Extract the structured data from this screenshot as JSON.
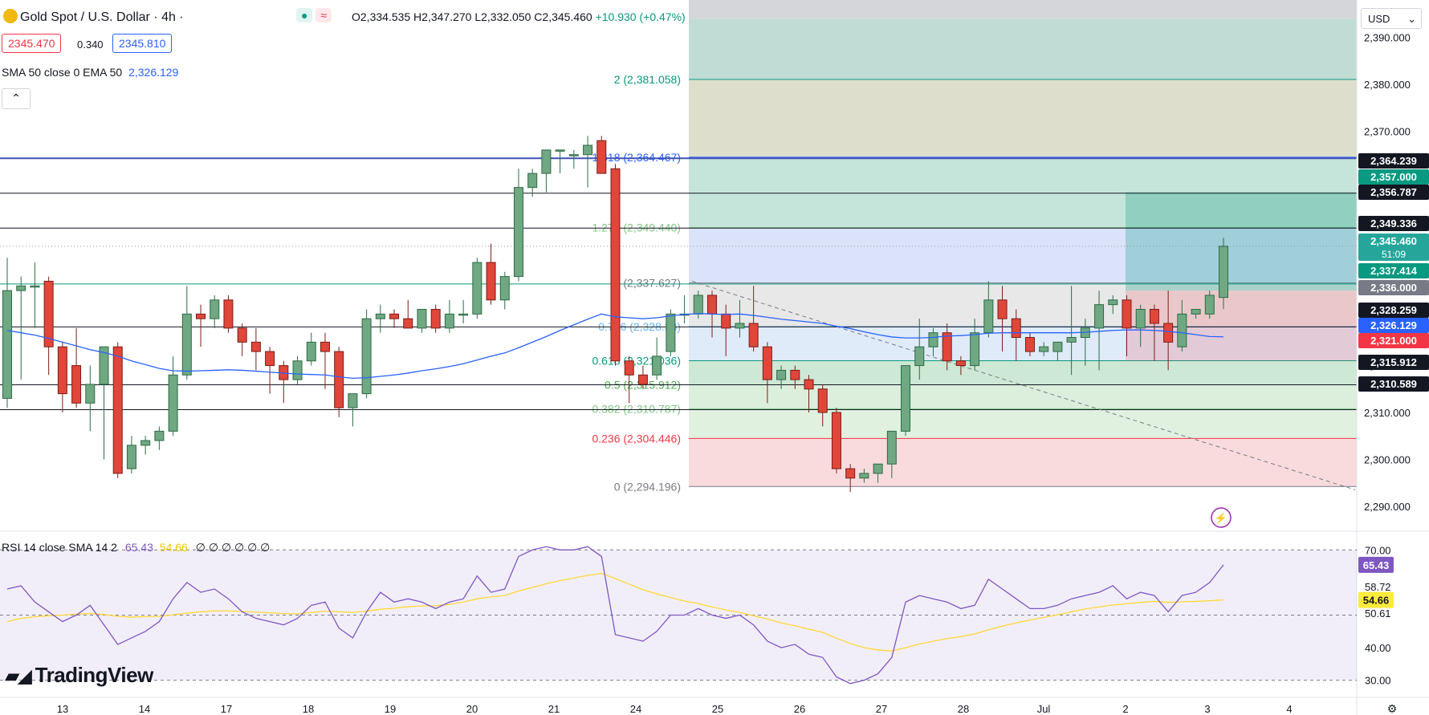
{
  "header": {
    "symbol": "Gold Spot / U.S. Dollar · 4h ·",
    "ohlc": "O2,334.535  H2,347.270  L2,332.050  C2,345.460",
    "change": "+10.930 (+0.47%)",
    "bid": "2345.470",
    "spread": "0.340",
    "ask": "2345.810",
    "indicator_label": "SMA 50 close 0 EMA 50",
    "indicator_value": "2,326.129",
    "rsi_label": "RSI 14 close SMA 14 2",
    "rsi_value": "65.43",
    "rsi_sma_value": "54.66",
    "rsi_zeros": "∅ ∅ ∅ ∅ ∅ ∅",
    "currency": "USD",
    "logo": "TradingView",
    "collapse_icon": "chevron-up-icon"
  },
  "chart_data": {
    "type": "candlestick",
    "title": "Gold Spot / U.S. Dollar · 4h",
    "y_range": [
      2285,
      2398
    ],
    "y_ticks": [
      "2,390.000",
      "2,380.000",
      "2,370.000",
      "2,360.000",
      "2,350.000",
      "2,340.000",
      "2,330.000",
      "2,320.000",
      "2,310.000",
      "2,300.000",
      "2,290.000"
    ],
    "x_labels": [
      "13",
      "14",
      "17",
      "18",
      "19",
      "20",
      "21",
      "24",
      "25",
      "26",
      "27",
      "28",
      "Jul",
      "2",
      "3",
      "4"
    ],
    "candles": [
      {
        "o": 2313,
        "h": 2343,
        "l": 2311,
        "c": 2336
      },
      {
        "o": 2336,
        "h": 2339,
        "l": 2317,
        "c": 2337
      },
      {
        "o": 2337,
        "h": 2342,
        "l": 2328,
        "c": 2337
      },
      {
        "o": 2338,
        "h": 2339,
        "l": 2318,
        "c": 2324
      },
      {
        "o": 2324,
        "h": 2325,
        "l": 2310,
        "c": 2314
      },
      {
        "o": 2320,
        "h": 2328,
        "l": 2311,
        "c": 2312
      },
      {
        "o": 2312,
        "h": 2320,
        "l": 2306,
        "c": 2316
      },
      {
        "o": 2316,
        "h": 2324,
        "l": 2300,
        "c": 2324
      },
      {
        "o": 2324,
        "h": 2325,
        "l": 2296,
        "c": 2297
      },
      {
        "o": 2298,
        "h": 2305,
        "l": 2297,
        "c": 2303
      },
      {
        "o": 2303,
        "h": 2305,
        "l": 2301,
        "c": 2304
      },
      {
        "o": 2304,
        "h": 2307,
        "l": 2302,
        "c": 2306
      },
      {
        "o": 2306,
        "h": 2322,
        "l": 2305,
        "c": 2318
      },
      {
        "o": 2318,
        "h": 2337,
        "l": 2317,
        "c": 2331
      },
      {
        "o": 2331,
        "h": 2333,
        "l": 2324,
        "c": 2330
      },
      {
        "o": 2330,
        "h": 2335,
        "l": 2328,
        "c": 2334
      },
      {
        "o": 2334,
        "h": 2335,
        "l": 2327,
        "c": 2328
      },
      {
        "o": 2328,
        "h": 2329,
        "l": 2322,
        "c": 2325
      },
      {
        "o": 2325,
        "h": 2328,
        "l": 2319,
        "c": 2323
      },
      {
        "o": 2323,
        "h": 2324,
        "l": 2314,
        "c": 2320
      },
      {
        "o": 2320,
        "h": 2321,
        "l": 2312,
        "c": 2317
      },
      {
        "o": 2317,
        "h": 2322,
        "l": 2316,
        "c": 2321
      },
      {
        "o": 2321,
        "h": 2327,
        "l": 2320,
        "c": 2325
      },
      {
        "o": 2325,
        "h": 2327,
        "l": 2315,
        "c": 2323
      },
      {
        "o": 2323,
        "h": 2324,
        "l": 2309,
        "c": 2311
      },
      {
        "o": 2311,
        "h": 2314,
        "l": 2307,
        "c": 2314
      },
      {
        "o": 2314,
        "h": 2332,
        "l": 2313,
        "c": 2330
      },
      {
        "o": 2330,
        "h": 2333,
        "l": 2327,
        "c": 2331
      },
      {
        "o": 2331,
        "h": 2332,
        "l": 2328,
        "c": 2330
      },
      {
        "o": 2330,
        "h": 2334,
        "l": 2328,
        "c": 2328
      },
      {
        "o": 2328,
        "h": 2332,
        "l": 2327,
        "c": 2332
      },
      {
        "o": 2332,
        "h": 2333,
        "l": 2327,
        "c": 2328
      },
      {
        "o": 2328,
        "h": 2334,
        "l": 2327,
        "c": 2331
      },
      {
        "o": 2331,
        "h": 2334,
        "l": 2329,
        "c": 2331
      },
      {
        "o": 2331,
        "h": 2343,
        "l": 2330,
        "c": 2342
      },
      {
        "o": 2342,
        "h": 2346,
        "l": 2333,
        "c": 2334
      },
      {
        "o": 2334,
        "h": 2340,
        "l": 2332,
        "c": 2339
      },
      {
        "o": 2339,
        "h": 2362,
        "l": 2338,
        "c": 2358
      },
      {
        "o": 2358,
        "h": 2362,
        "l": 2356,
        "c": 2361
      },
      {
        "o": 2361,
        "h": 2366,
        "l": 2357,
        "c": 2366
      },
      {
        "o": 2366,
        "h": 2366,
        "l": 2361,
        "c": 2366
      },
      {
        "o": 2365,
        "h": 2366,
        "l": 2362,
        "c": 2365
      },
      {
        "o": 2365,
        "h": 2369,
        "l": 2358,
        "c": 2367
      },
      {
        "o": 2368,
        "h": 2369,
        "l": 2361,
        "c": 2361
      },
      {
        "o": 2362,
        "h": 2363,
        "l": 2320,
        "c": 2321
      },
      {
        "o": 2321,
        "h": 2322,
        "l": 2312,
        "c": 2318
      },
      {
        "o": 2318,
        "h": 2320,
        "l": 2315,
        "c": 2316
      },
      {
        "o": 2318,
        "h": 2326,
        "l": 2317,
        "c": 2322
      },
      {
        "o": 2323,
        "h": 2332,
        "l": 2322,
        "c": 2331
      },
      {
        "o": 2331,
        "h": 2335,
        "l": 2329,
        "c": 2331
      },
      {
        "o": 2331,
        "h": 2336,
        "l": 2330,
        "c": 2335
      },
      {
        "o": 2335,
        "h": 2336,
        "l": 2326,
        "c": 2331
      },
      {
        "o": 2331,
        "h": 2333,
        "l": 2322,
        "c": 2328
      },
      {
        "o": 2328,
        "h": 2334,
        "l": 2326,
        "c": 2329
      },
      {
        "o": 2329,
        "h": 2337,
        "l": 2323,
        "c": 2324
      },
      {
        "o": 2324,
        "h": 2325,
        "l": 2312,
        "c": 2317
      },
      {
        "o": 2317,
        "h": 2320,
        "l": 2315,
        "c": 2319
      },
      {
        "o": 2319,
        "h": 2320,
        "l": 2315,
        "c": 2317
      },
      {
        "o": 2317,
        "h": 2318,
        "l": 2310,
        "c": 2315
      },
      {
        "o": 2315,
        "h": 2316,
        "l": 2307,
        "c": 2310
      },
      {
        "o": 2310,
        "h": 2311,
        "l": 2297,
        "c": 2298
      },
      {
        "o": 2298,
        "h": 2299,
        "l": 2293,
        "c": 2296
      },
      {
        "o": 2296,
        "h": 2298,
        "l": 2295,
        "c": 2297
      },
      {
        "o": 2297,
        "h": 2298,
        "l": 2295,
        "c": 2299
      },
      {
        "o": 2299,
        "h": 2306,
        "l": 2296,
        "c": 2306
      },
      {
        "o": 2306,
        "h": 2320,
        "l": 2305,
        "c": 2320
      },
      {
        "o": 2320,
        "h": 2330,
        "l": 2317,
        "c": 2324
      },
      {
        "o": 2324,
        "h": 2328,
        "l": 2322,
        "c": 2327
      },
      {
        "o": 2327,
        "h": 2329,
        "l": 2319,
        "c": 2321
      },
      {
        "o": 2321,
        "h": 2322,
        "l": 2318,
        "c": 2320
      },
      {
        "o": 2320,
        "h": 2330,
        "l": 2319,
        "c": 2327
      },
      {
        "o": 2327,
        "h": 2338,
        "l": 2326,
        "c": 2334
      },
      {
        "o": 2334,
        "h": 2337,
        "l": 2323,
        "c": 2330
      },
      {
        "o": 2330,
        "h": 2332,
        "l": 2321,
        "c": 2326
      },
      {
        "o": 2326,
        "h": 2327,
        "l": 2322,
        "c": 2323
      },
      {
        "o": 2323,
        "h": 2325,
        "l": 2322,
        "c": 2324
      },
      {
        "o": 2323,
        "h": 2325,
        "l": 2321,
        "c": 2325
      },
      {
        "o": 2325,
        "h": 2337,
        "l": 2318,
        "c": 2326
      },
      {
        "o": 2326,
        "h": 2330,
        "l": 2320,
        "c": 2328
      },
      {
        "o": 2328,
        "h": 2336,
        "l": 2319,
        "c": 2333
      },
      {
        "o": 2333,
        "h": 2335,
        "l": 2331,
        "c": 2334
      },
      {
        "o": 2334,
        "h": 2335,
        "l": 2322,
        "c": 2328
      },
      {
        "o": 2328,
        "h": 2333,
        "l": 2324,
        "c": 2332
      },
      {
        "o": 2332,
        "h": 2333,
        "l": 2321,
        "c": 2329
      },
      {
        "o": 2329,
        "h": 2336,
        "l": 2319,
        "c": 2325
      },
      {
        "o": 2324,
        "h": 2334,
        "l": 2323,
        "c": 2331
      },
      {
        "o": 2331,
        "h": 2332,
        "l": 2330,
        "c": 2332
      },
      {
        "o": 2331,
        "h": 2336,
        "l": 2330,
        "c": 2335
      },
      {
        "o": 2334.535,
        "h": 2347.27,
        "l": 2332.05,
        "c": 2345.46
      }
    ],
    "ema50": [
      2327.5,
      2327,
      2326.5,
      2325.8,
      2325,
      2324.2,
      2323.4,
      2322.8,
      2322,
      2321,
      2320.2,
      2319.4,
      2318.9,
      2318.8,
      2318.9,
      2319,
      2319.1,
      2319,
      2318.8,
      2318.6,
      2318.4,
      2318.2,
      2318.1,
      2318,
      2317.6,
      2317.3,
      2317.4,
      2317.7,
      2318,
      2318.4,
      2318.9,
      2319.3,
      2319.8,
      2320.4,
      2321.2,
      2322,
      2322.7,
      2323.8,
      2325,
      2326.2,
      2327.5,
      2328.7,
      2329.9,
      2331,
      2330.4,
      2330.2,
      2330,
      2330.2,
      2330.6,
      2330.9,
      2331.1,
      2331,
      2330.9,
      2331,
      2330.7,
      2330.3,
      2329.9,
      2329.6,
      2329.3,
      2329,
      2328.4,
      2327.9,
      2327.2,
      2326.6,
      2326.1,
      2325.9,
      2325.9,
      2326,
      2326.3,
      2326.4,
      2326.6,
      2326.9,
      2327,
      2327,
      2327,
      2327,
      2327,
      2327,
      2327.1,
      2327.3,
      2327.5,
      2327.6,
      2327.6,
      2327.5,
      2327.3,
      2327,
      2326.6,
      2326.2,
      2326.129
    ],
    "fib_levels": [
      {
        "ratio": "2",
        "price": 2381.058,
        "label": "2 (2,381.058)",
        "color": "#089981"
      },
      {
        "ratio": "1.618",
        "price": 2364.467,
        "label": "1.618 (2,364.467)",
        "color": "#2962ff"
      },
      {
        "ratio": "1.272",
        "price": 2349.44,
        "label": "1.272 (2,349.440)",
        "color": "#81c784"
      },
      {
        "ratio": "1",
        "price": 2337.627,
        "label": "1 (2,337.627)",
        "color": "#787b86"
      },
      {
        "ratio": "0.786",
        "price": 2328.33,
        "label": "0.786 (2,328.33)",
        "color": "#64b5f6"
      },
      {
        "ratio": "0.618",
        "price": 2321.036,
        "label": "0.618 (2,321.036)",
        "color": "#089981"
      },
      {
        "ratio": "0.5",
        "price": 2315.912,
        "label": "0.5 (2,315.912)",
        "color": "#4caf50"
      },
      {
        "ratio": "0.382",
        "price": 2310.787,
        "label": "0.382 (2,310.787)",
        "color": "#81c784"
      },
      {
        "ratio": "0.236",
        "price": 2304.446,
        "label": "0.236 (2,304.446)",
        "color": "#f23645"
      },
      {
        "ratio": "0",
        "price": 2294.196,
        "label": "0 (2,294.196)",
        "color": "#787b86"
      }
    ],
    "horizontal_lines": [
      2364.239,
      2356.787,
      2349.336,
      2337.414,
      2328.259,
      2315.912,
      2310.589
    ],
    "position_tool": {
      "entry": 2336.0,
      "target": 2357.0,
      "stop": 2321.0
    },
    "price_tags": [
      {
        "value": "2,364.239",
        "bg": "#131722",
        "fg": "#ffffff"
      },
      {
        "value": "2,357.000",
        "bg": "#089981",
        "fg": "#ffffff"
      },
      {
        "value": "2,356.787",
        "bg": "#131722",
        "fg": "#ffffff"
      },
      {
        "value": "2,349.336",
        "bg": "#131722",
        "fg": "#ffffff"
      },
      {
        "value": "2,345.460",
        "sub": "51:09",
        "bg": "#26a69a",
        "fg": "#ffffff"
      },
      {
        "value": "2,337.414",
        "bg": "#089981",
        "fg": "#ffffff"
      },
      {
        "value": "2,336.000",
        "bg": "#787b86",
        "fg": "#ffffff"
      },
      {
        "value": "2,328.259",
        "bg": "#131722",
        "fg": "#ffffff"
      },
      {
        "value": "2,326.129",
        "bg": "#2962ff",
        "fg": "#ffffff"
      },
      {
        "value": "2,321.000",
        "bg": "#f23645",
        "fg": "#ffffff"
      },
      {
        "value": "2,315.912",
        "bg": "#131722",
        "fg": "#ffffff"
      },
      {
        "value": "2,310.589",
        "bg": "#131722",
        "fg": "#ffffff"
      }
    ],
    "rsi": {
      "y_range": [
        25,
        75
      ],
      "y_ticks": [
        "70.00",
        "58.72",
        "50.61",
        "40.00",
        "30.00"
      ],
      "tags": [
        {
          "value": "65.43",
          "bg": "#7e57c2",
          "fg": "#ffffff"
        },
        {
          "value": "54.66",
          "bg": "#ffeb3b",
          "fg": "#131722"
        }
      ],
      "values": [
        58,
        59,
        54,
        51,
        48,
        50,
        53,
        47,
        41,
        43,
        45,
        48,
        55,
        60,
        57,
        58,
        55,
        51,
        49,
        48,
        47,
        49,
        53,
        54,
        46,
        43,
        51,
        57,
        54,
        55,
        54,
        52,
        54,
        55,
        62,
        57,
        58,
        68,
        70,
        71,
        70,
        70,
        71,
        68,
        44,
        43,
        42,
        45,
        50,
        50,
        52,
        50,
        49,
        50,
        47,
        42,
        40,
        41,
        38,
        37,
        31,
        29,
        30,
        32,
        37,
        54,
        56,
        55,
        54,
        52,
        53,
        61,
        58,
        55,
        52,
        52,
        53,
        55,
        56,
        57,
        59,
        55,
        57,
        56,
        51,
        56,
        57,
        60,
        65.43
      ],
      "sma": [
        48,
        49,
        49.5,
        49.8,
        50,
        50.3,
        50.5,
        50.2,
        49.6,
        49.4,
        49.5,
        49.6,
        50.1,
        50.6,
        51,
        51.3,
        51.3,
        51.1,
        50.9,
        50.7,
        50.5,
        50.4,
        50.8,
        51.2,
        51,
        50.8,
        51.2,
        51.8,
        52.1,
        52.6,
        52.8,
        52.9,
        53.3,
        54,
        55,
        55.6,
        56,
        57.4,
        58.5,
        59.6,
        60.6,
        61.4,
        62.2,
        62.8,
        61.2,
        59.5,
        57.8,
        56.5,
        55.4,
        54.3,
        53.5,
        52.5,
        51.6,
        50.8,
        49.8,
        48.8,
        47.6,
        46.7,
        45.7,
        44.7,
        42.9,
        41.3,
        40,
        39.3,
        39,
        40,
        41.1,
        42,
        42.8,
        43.4,
        44.2,
        45.5,
        46.6,
        47.6,
        48.5,
        49.3,
        50.1,
        51,
        51.9,
        52.5,
        53.1,
        53.5,
        53.9,
        54.2,
        53.9,
        54.1,
        54.2,
        54.4,
        54.66
      ]
    }
  }
}
